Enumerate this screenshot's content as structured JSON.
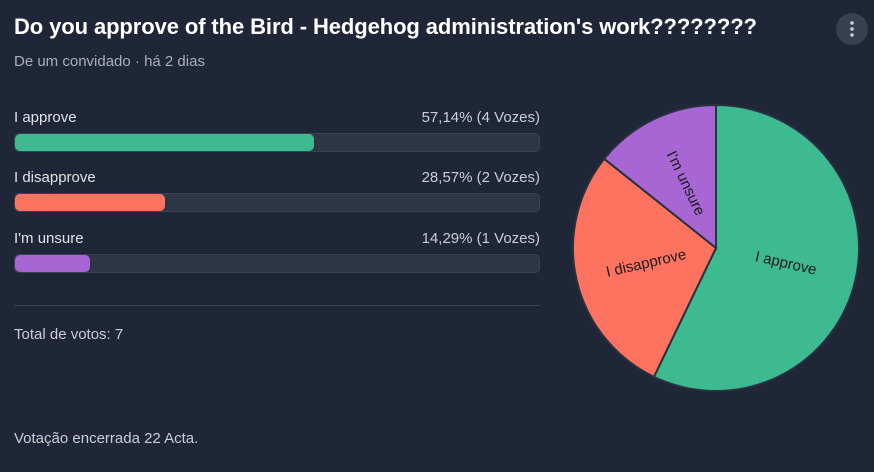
{
  "poll": {
    "title": "Do you approve of the Bird - Hedgehog administration's work????????",
    "meta": "De um convidado · há 2 dias",
    "menu_icon": "vertical-ellipsis-icon",
    "options": [
      {
        "label": "I approve",
        "stat": "57,14% (4 Vozes)",
        "percent": 57.14,
        "color": "#3dba8f"
      },
      {
        "label": "I disapprove",
        "stat": "28,57% (2 Vozes)",
        "percent": 28.57,
        "color": "#fe735f"
      },
      {
        "label": "I'm unsure",
        "stat": "14,29% (1 Vozes)",
        "percent": 14.29,
        "color": "#a866d4"
      }
    ],
    "total": "Total de votos: 7",
    "closed": "Votação encerrada 22 Acta."
  },
  "chart_data": {
    "type": "pie",
    "categories": [
      "I approve",
      "I disapprove",
      "I'm unsure"
    ],
    "values": [
      4,
      2,
      1
    ],
    "colors": [
      "#3dba8f",
      "#fe735f",
      "#a866d4"
    ],
    "title": ""
  }
}
